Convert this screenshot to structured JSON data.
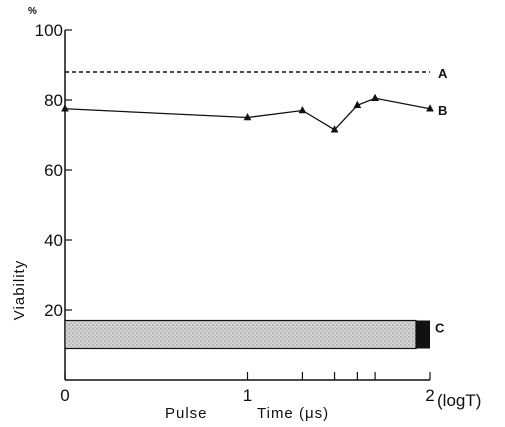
{
  "chart_data": {
    "type": "line",
    "ylabel": "Viability",
    "y_unit": "%",
    "xlabel_left": "Pulse",
    "xlabel_right": "Time (μs)",
    "x_scale_label": "(logT)",
    "xlim": [
      0,
      2
    ],
    "ylim": [
      0,
      100
    ],
    "x_ticks": [
      0,
      1,
      2
    ],
    "x_tick_labels": [
      "0",
      "1",
      "2"
    ],
    "x_minor_ticks": [
      1.301,
      1.477,
      1.602,
      1.699
    ],
    "y_ticks": [
      20,
      40,
      60,
      80,
      100
    ],
    "y_tick_labels": [
      "20",
      "40",
      "60",
      "80",
      "100"
    ],
    "grid": false,
    "series": [
      {
        "name": "A",
        "style": "dashed",
        "x": [
          0,
          2
        ],
        "y": [
          88,
          88
        ]
      },
      {
        "name": "B",
        "style": "solid-triangle-markers",
        "x": [
          0,
          1.0,
          1.301,
          1.477,
          1.602,
          1.699,
          2.0
        ],
        "y": [
          77.5,
          75,
          77,
          71.5,
          78.5,
          80.5,
          77.5
        ]
      },
      {
        "name": "C",
        "style": "filled-band",
        "x_start": 0,
        "x_end": 2,
        "y_low": 9,
        "y_high": 17
      }
    ],
    "colors": {
      "line": "#111111",
      "band_fill": "#c8c8c8",
      "band_end": "#111111"
    }
  }
}
